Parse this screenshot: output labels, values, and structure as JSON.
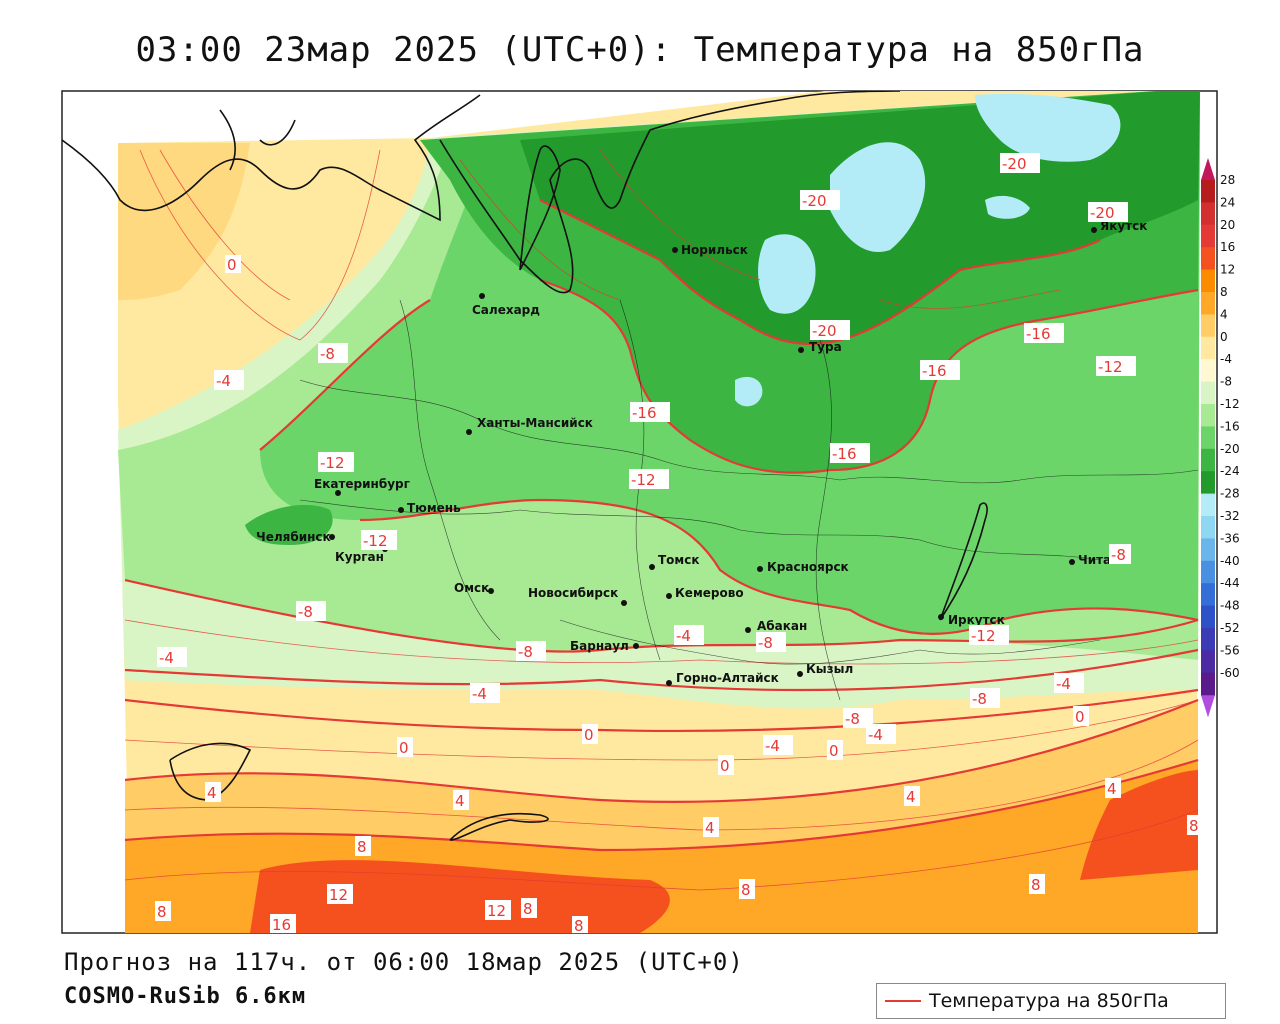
{
  "title": "03:00 23мар 2025 (UTC+0): Температура на 850гПа",
  "forecast_line": "Прогноз на 117ч. от 06:00 18мар 2025 (UTC+0)",
  "model_line": "COSMO-RuSib 6.6км",
  "legend": {
    "label": "Температура на 850гПа",
    "line_color": "#e53935"
  },
  "colorbar": {
    "ticks": [
      "28",
      "24",
      "20",
      "16",
      "12",
      "8",
      "4",
      "0",
      "-4",
      "-8",
      "-12",
      "-16",
      "-20",
      "-24",
      "-28",
      "-32",
      "-36",
      "-40",
      "-44",
      "-48",
      "-52",
      "-56",
      "-60"
    ],
    "colors": [
      "#b71c1c",
      "#d32f2f",
      "#e53935",
      "#f4511e",
      "#fb8c00",
      "#ffa726",
      "#ffcc66",
      "#ffe9a0",
      "#fff8d0",
      "#d9f5c5",
      "#a8ea94",
      "#6cd56a",
      "#3cb543",
      "#229a2c",
      "#b3ecf7",
      "#8ed6f2",
      "#6ab5ea",
      "#4a90e2",
      "#356ed6",
      "#2f51c8",
      "#3b3bb5",
      "#4b2aa3",
      "#5a1a8a"
    ]
  },
  "cities": [
    {
      "name": "Норильск"
    },
    {
      "name": "Салехард"
    },
    {
      "name": "Якутск"
    },
    {
      "name": "Тура"
    },
    {
      "name": "Ханты-Мансийск"
    },
    {
      "name": "Екатеринбург"
    },
    {
      "name": "Тюмень"
    },
    {
      "name": "Челябинск"
    },
    {
      "name": "Курган"
    },
    {
      "name": "Омск"
    },
    {
      "name": "Томск"
    },
    {
      "name": "Новосибирск"
    },
    {
      "name": "Кемерово"
    },
    {
      "name": "Красноярск"
    },
    {
      "name": "Барнаул"
    },
    {
      "name": "Абакан"
    },
    {
      "name": "Горно-Алтайск"
    },
    {
      "name": "Кызыл"
    },
    {
      "name": "Иркутск"
    },
    {
      "name": "Чита"
    }
  ],
  "isotherm_labels": [
    "0",
    "-4",
    "-8",
    "-12",
    "-16",
    "-20",
    "4",
    "8",
    "12",
    "16"
  ]
}
